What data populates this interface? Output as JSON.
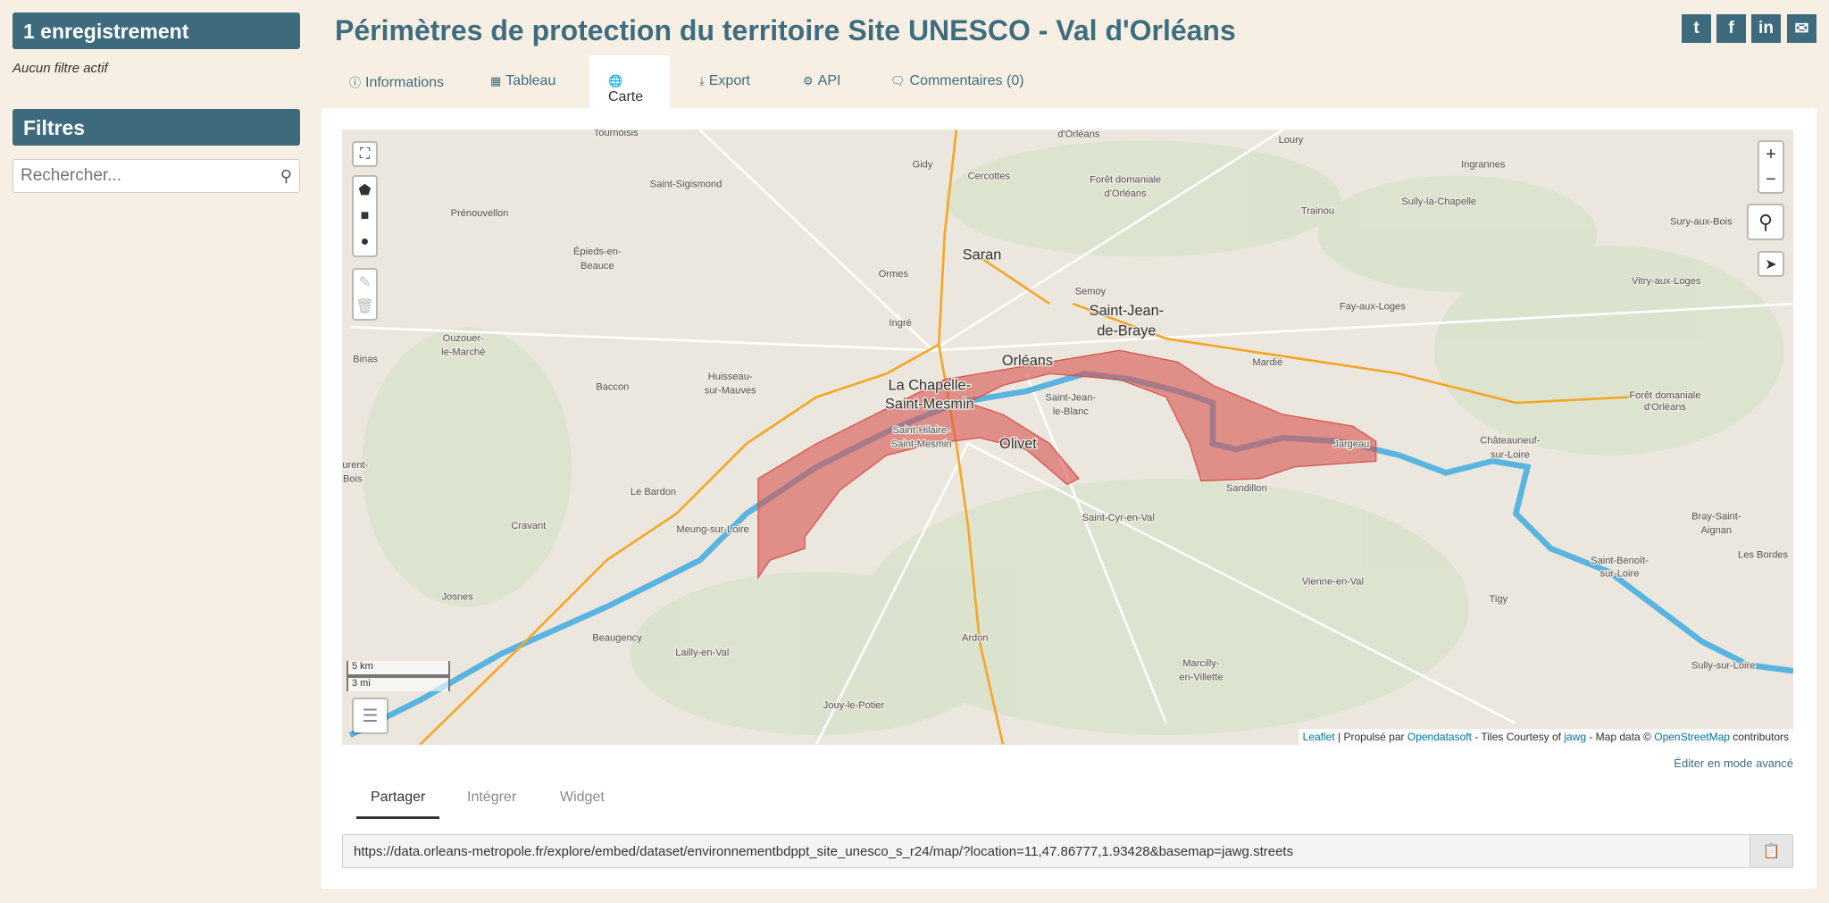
{
  "sidebar": {
    "records": "1 enregistrement",
    "no_filter": "Aucun filtre actif",
    "filters_title": "Filtres",
    "search_placeholder": "Rechercher..."
  },
  "header": {
    "title": "Périmètres de protection du territoire Site UNESCO - Val d'Orléans",
    "social": [
      "twitter-icon",
      "facebook-icon",
      "linkedin-icon",
      "envelope-icon"
    ]
  },
  "tabs": [
    {
      "label": "Informations",
      "icon": "info-circle-icon"
    },
    {
      "label": "Tableau",
      "icon": "table-icon"
    },
    {
      "label": "Carte",
      "icon": "globe-icon",
      "active": true
    },
    {
      "label": "Export",
      "icon": "download-icon"
    },
    {
      "label": "API",
      "icon": "cogs-icon"
    },
    {
      "label": "Commentaires (0)",
      "icon": "comments-icon"
    }
  ],
  "map": {
    "labels": [
      "Tournoisis",
      "Gidy",
      "Cercottes",
      "d'Orléans",
      "Loury",
      "Ingrannes",
      "Saint-Sigismond",
      "Forêt domaniale",
      "d'Orléans",
      "Trainou",
      "Sully-la-Chapelle",
      "Sury-aux-Bois",
      "Prénouvellon",
      "Épieds-en-",
      "Beauce",
      "Saran",
      "Ormes",
      "Semoy",
      "Vitry-aux-Loges",
      "Saint-Jean-",
      "de-Braye",
      "Fay-aux-Loges",
      "Ingré",
      "Ouzouer-",
      "le-Marché",
      "Binas",
      "Orléans",
      "Huisseau-",
      "sur-Mauves",
      "Baccon",
      "Mardié",
      "La Chapelle-",
      "Saint-Mesmin",
      "Saint-Jean-",
      "le-Blanc",
      "Forêt domaniale",
      "d'Orléans",
      "Saint-Hilaire-",
      "Saint-Mesmin",
      "Olivet",
      "Jargeau",
      "Châteauneuf-",
      "sur-Loire",
      "aurent-",
      "Bois",
      "Le Bardon",
      "Sandillon",
      "Saint-Cyr-en-Val",
      "Bray-Saint-",
      "Aignan",
      "Cravant",
      "Meung-sur-Loire",
      "Les Bordes",
      "Saint-Benoît-",
      "sur-Loire",
      "Vienne-en-Val",
      "Josnes",
      "Tigy",
      "Beaugency",
      "Ardon",
      "Lailly-en-Val",
      "Marcilly-",
      "en-Villette",
      "Sully-sur-Loire",
      "Jouy-le-Potier"
    ],
    "scale": [
      "5 km",
      "3 mi"
    ],
    "attribution": {
      "leaflet": "Leaflet",
      "powered": "| Propulsé par",
      "ods": "Opendatasoft",
      "tiles": "- Tiles Courtesy of",
      "jawg": "jawg",
      "mapdata": "- Map data ©",
      "osm": "OpenStreetMap",
      "contrib": "contributors"
    },
    "colors": {
      "perimeter": "#d9534f",
      "river": "#5ab4e0",
      "road": "#f5a623"
    }
  },
  "advanced": "Éditer en mode avancé",
  "share_tabs": [
    "Partager",
    "Intégrer",
    "Widget"
  ],
  "share_url": "https://data.orleans-metropole.fr/explore/embed/dataset/environnementbdppt_site_unesco_s_r24/map/?location=11,47.86777,1.93428&basemap=jawg.streets"
}
